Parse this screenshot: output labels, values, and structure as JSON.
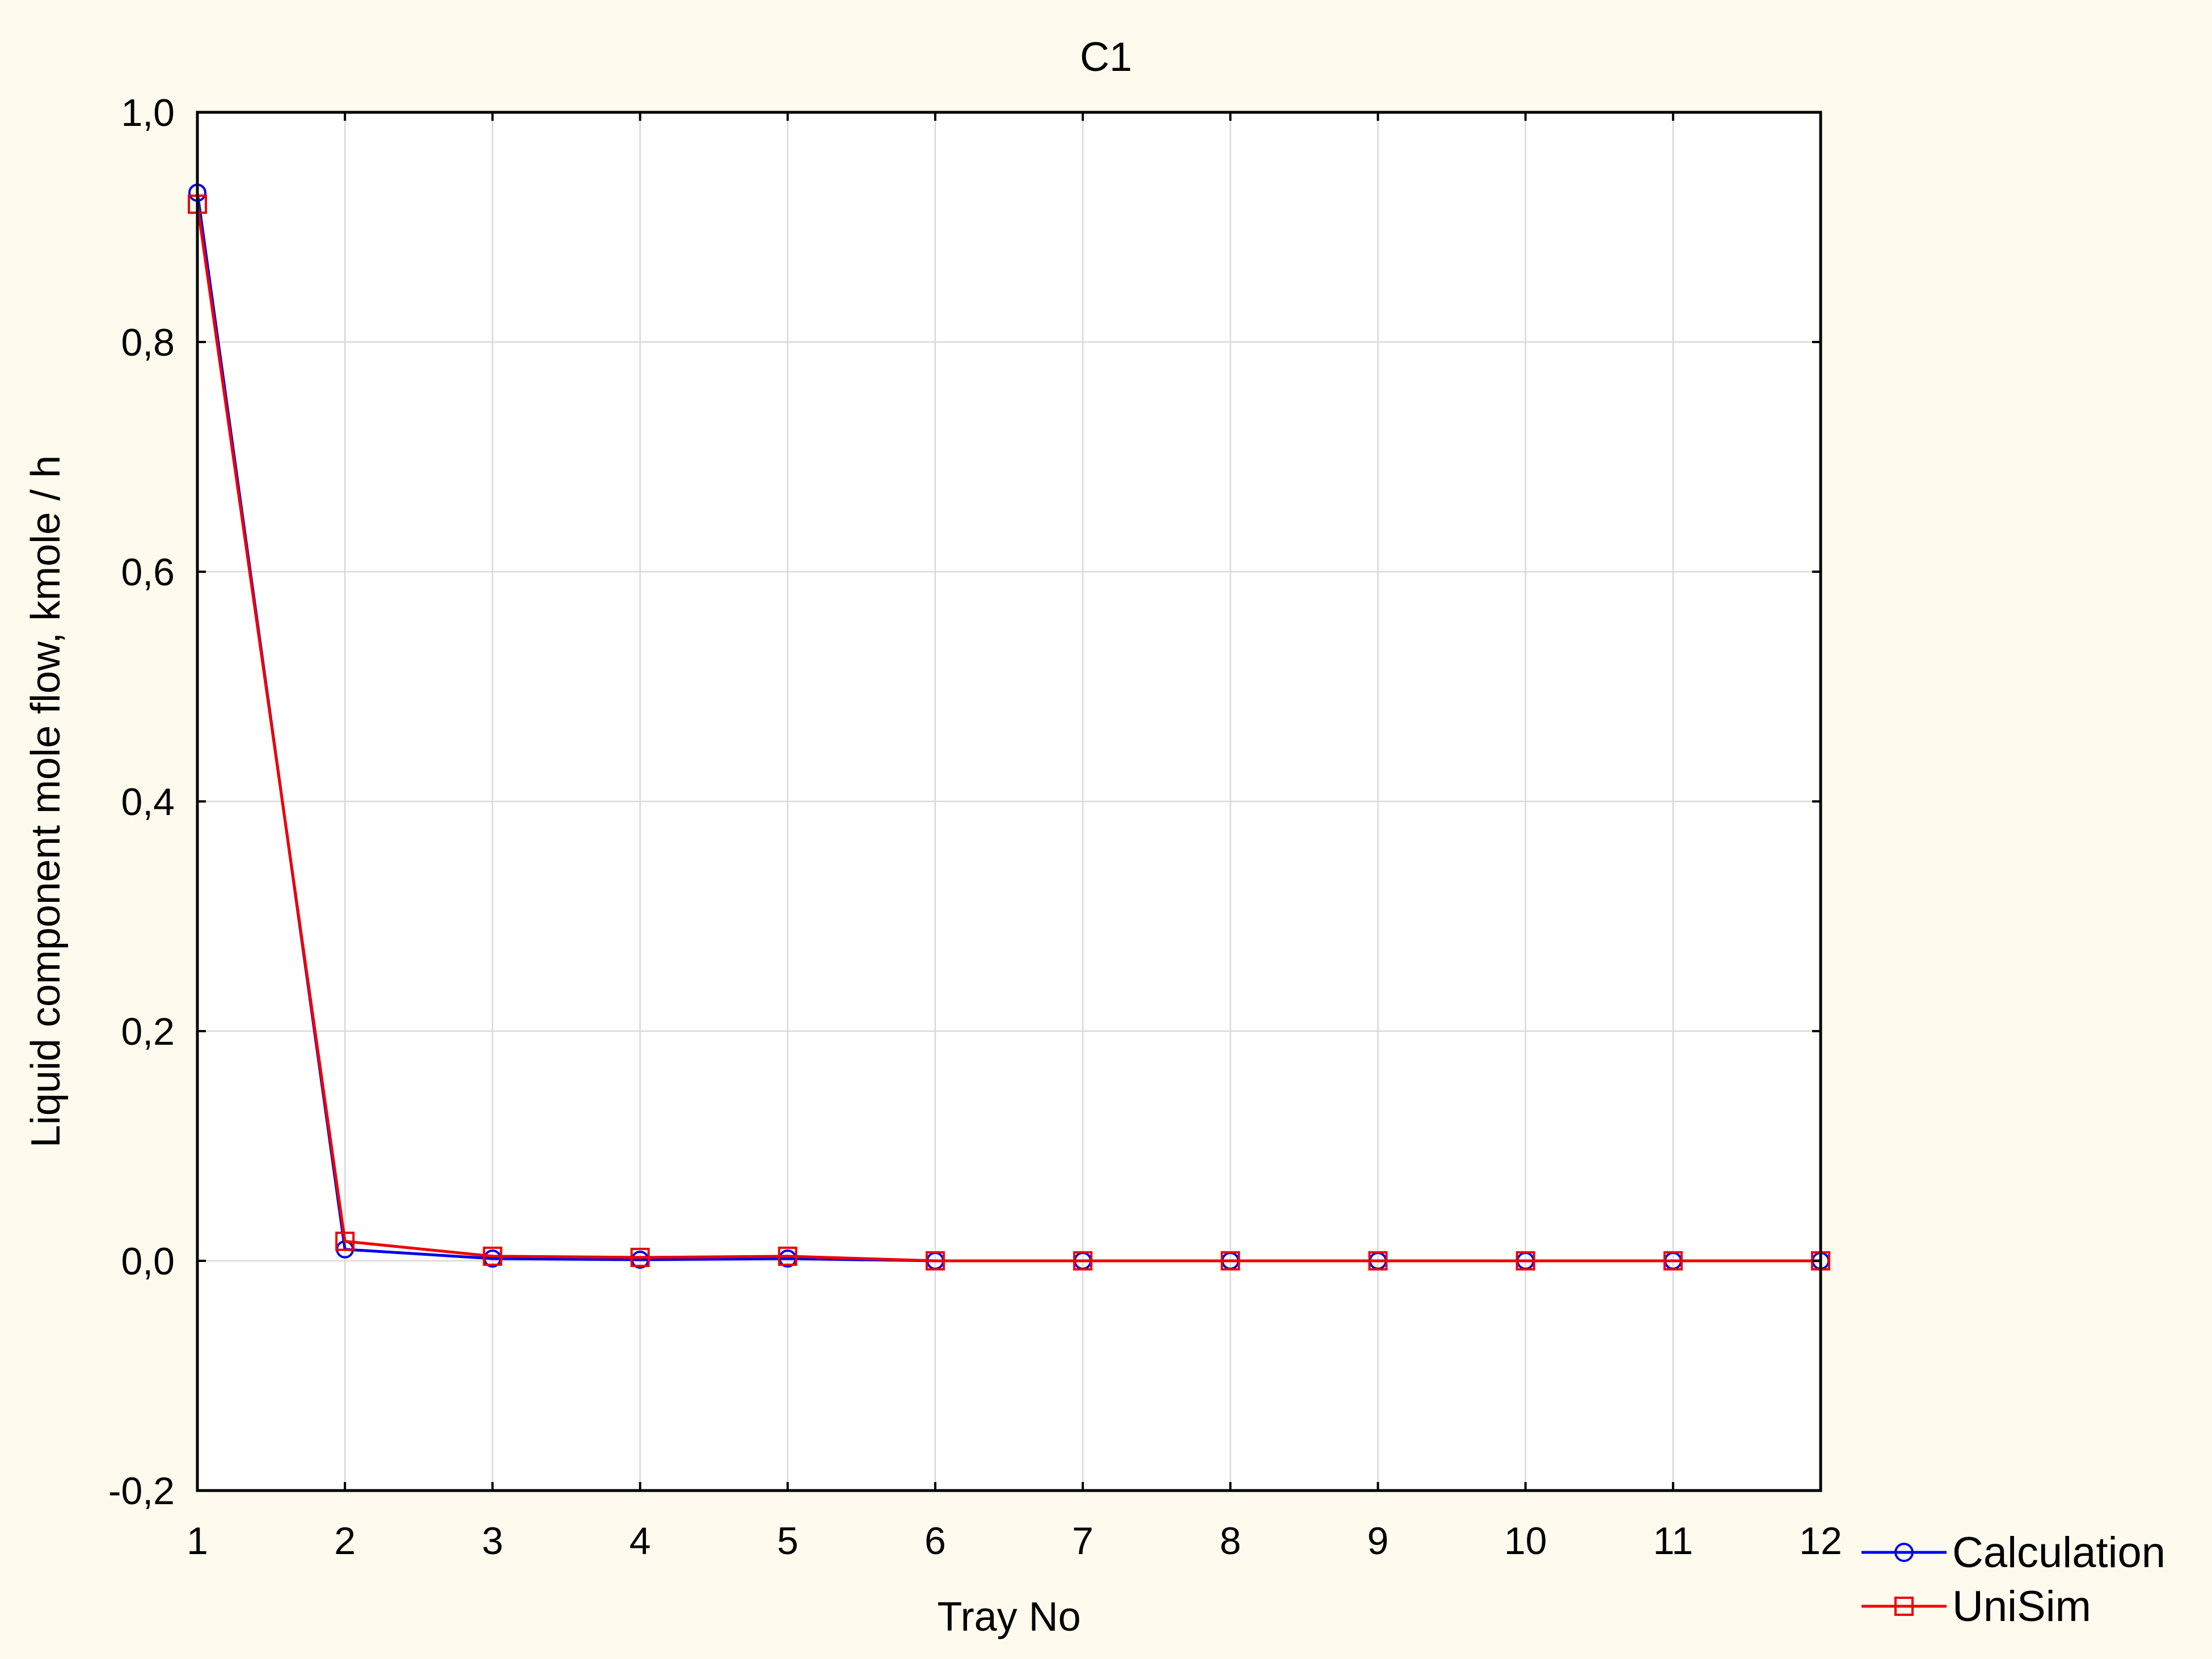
{
  "chart_data": {
    "type": "line",
    "title": "C1",
    "xlabel": "Tray No",
    "ylabel": "Liquid component mole flow, kmole / h",
    "x": [
      1,
      2,
      3,
      4,
      5,
      6,
      7,
      8,
      9,
      10,
      11,
      12
    ],
    "xlim": [
      1,
      12
    ],
    "ylim": [
      -0.2,
      1.0
    ],
    "x_ticks": [
      "1",
      "2",
      "3",
      "4",
      "5",
      "6",
      "7",
      "8",
      "9",
      "10",
      "11",
      "12"
    ],
    "y_ticks": [
      {
        "value": 1.0,
        "label": "1,0"
      },
      {
        "value": 0.8,
        "label": "0,8"
      },
      {
        "value": 0.6,
        "label": "0,6"
      },
      {
        "value": 0.4,
        "label": "0,4"
      },
      {
        "value": 0.2,
        "label": "0,2"
      },
      {
        "value": 0.0,
        "label": "0,0"
      },
      {
        "value": -0.2,
        "label": "-0,2"
      }
    ],
    "grid": true,
    "legend_position": "bottom-right outside",
    "series": [
      {
        "name": "Calculation",
        "color": "#0000ee",
        "marker": "circle",
        "values": [
          0.93,
          0.01,
          0.002,
          0.001,
          0.002,
          0.0,
          0.0,
          0.0,
          0.0,
          0.0,
          0.0,
          0.0
        ]
      },
      {
        "name": "UniSim",
        "color": "#ee0000",
        "marker": "square",
        "values": [
          0.92,
          0.017,
          0.004,
          0.003,
          0.004,
          0.0,
          0.0,
          0.0,
          0.0,
          0.0,
          0.0,
          0.0
        ]
      }
    ]
  }
}
